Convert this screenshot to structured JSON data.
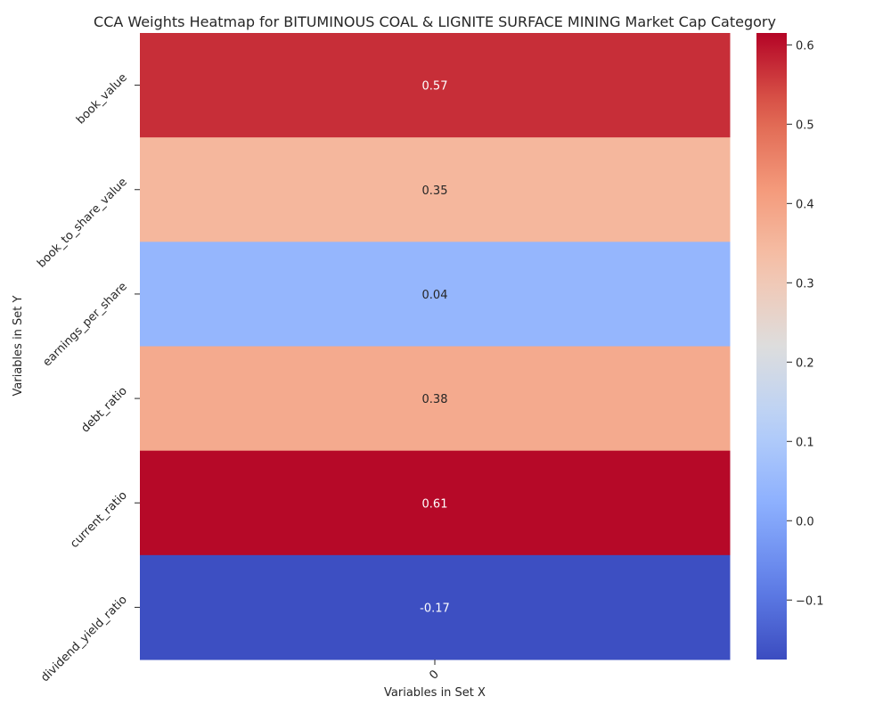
{
  "chart_data": {
    "type": "heatmap",
    "title": "CCA Weights Heatmap for BITUMINOUS COAL & LIGNITE SURFACE MINING Market Cap Category",
    "xlabel": "Variables in Set X",
    "ylabel": "Variables in Set Y",
    "x_categories": [
      "0"
    ],
    "y_categories": [
      "book_value",
      "book_to_share_value",
      "earnings_per_share",
      "debt_ratio",
      "current_ratio",
      "dividend_yield_ratio"
    ],
    "values": [
      [
        0.57
      ],
      [
        0.35
      ],
      [
        0.04
      ],
      [
        0.38
      ],
      [
        0.61
      ],
      [
        -0.17
      ]
    ],
    "value_labels": [
      "0.57",
      "0.35",
      "0.04",
      "0.38",
      "0.61",
      "-0.17"
    ],
    "colormap": "coolwarm",
    "vmin": -0.175,
    "vmax": 0.615,
    "colorbar_ticks": [
      -0.1,
      0.0,
      0.1,
      0.2,
      0.3,
      0.4,
      0.5,
      0.6
    ],
    "colorbar_tick_labels": [
      "−0.1",
      "0.0",
      "0.1",
      "0.2",
      "0.3",
      "0.4",
      "0.5",
      "0.6"
    ],
    "grid": false,
    "legend": "colorbar-right"
  }
}
